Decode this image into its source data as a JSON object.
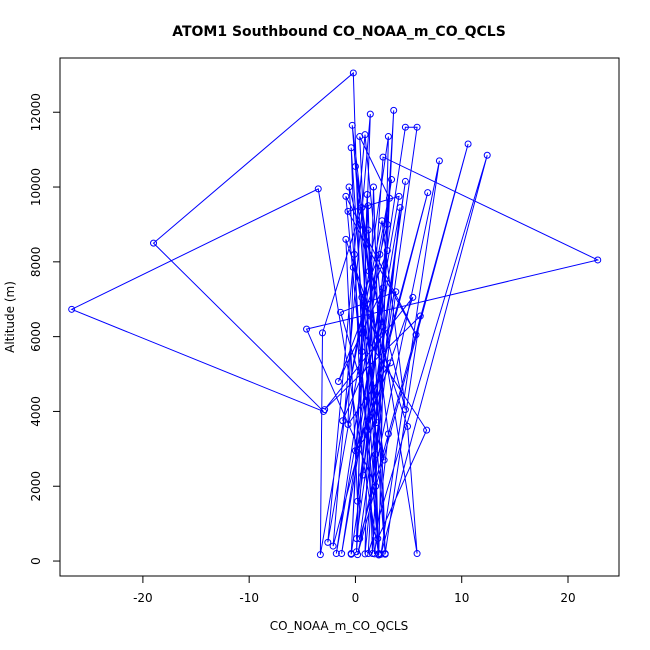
{
  "chart_data": {
    "type": "line",
    "title": "ATOM1 Southbound CO_NOAA_m_CO_QCLS",
    "xlabel": "CO_NOAA_m_CO_QCLS",
    "ylabel": "Altitude (m)",
    "xlim": [
      -27.8,
      24.8
    ],
    "ylim": [
      -400,
      13450
    ],
    "x_ticks": [
      -20,
      -10,
      0,
      10,
      20
    ],
    "y_ticks": [
      0,
      2000,
      4000,
      6000,
      8000,
      10000,
      12000
    ],
    "grid": false,
    "legend": "none",
    "color": "#0000ff",
    "series": [
      {
        "points": [
          [
            -0.4,
            200
          ],
          [
            0.6,
            5600
          ],
          [
            -0.2,
            13050
          ],
          [
            -19,
            8500
          ],
          [
            -3,
            4000
          ],
          [
            -26.7,
            6730
          ],
          [
            -3.5,
            9950
          ],
          [
            2.2,
            160
          ],
          [
            0.4,
            11350
          ],
          [
            3.2,
            9700
          ],
          [
            1.6,
            200
          ],
          [
            0.6,
            9450
          ],
          [
            -3.1,
            6100
          ],
          [
            -3.3,
            170
          ],
          [
            1.3,
            7750
          ],
          [
            -0.3,
            11650
          ],
          [
            2.8,
            180
          ],
          [
            1.1,
            9800
          ],
          [
            0.1,
            250
          ],
          [
            2.6,
            10800
          ],
          [
            22.8,
            8050
          ],
          [
            -4.6,
            6200
          ],
          [
            1.9,
            2000
          ],
          [
            3.6,
            12050
          ],
          [
            1.2,
            200
          ],
          [
            12.4,
            10850
          ],
          [
            2.4,
            180
          ],
          [
            7.9,
            10700
          ],
          [
            0.2,
            170
          ],
          [
            10.6,
            11150
          ],
          [
            0.4,
            600
          ],
          [
            5.8,
            11600
          ],
          [
            4.7,
            11600
          ],
          [
            -1.3,
            200
          ],
          [
            4.2,
            9450
          ],
          [
            0.9,
            190
          ],
          [
            1.7,
            10000
          ],
          [
            2.8,
            200
          ],
          [
            6.1,
            6550
          ],
          [
            -2.9,
            4050
          ],
          [
            5.4,
            7050
          ],
          [
            1.0,
            3500
          ],
          [
            6.8,
            9850
          ],
          [
            -2.1,
            400
          ],
          [
            1.4,
            11950
          ],
          [
            0.1,
            600
          ],
          [
            4.7,
            10150
          ],
          [
            -0.4,
            180
          ],
          [
            1.2,
            9500
          ],
          [
            2.1,
            600
          ],
          [
            6.7,
            3500
          ],
          [
            0.5,
            6200
          ],
          [
            3.1,
            11350
          ],
          [
            2.2,
            200
          ],
          [
            -0.9,
            9750
          ],
          [
            5.7,
            6050
          ],
          [
            -0.7,
            9350
          ],
          [
            4.1,
            9750
          ],
          [
            -1.8,
            200
          ],
          [
            3.4,
            10200
          ],
          [
            -2.6,
            500
          ],
          [
            0.9,
            11400
          ],
          [
            2.6,
            6250
          ],
          [
            -1.2,
            3750
          ],
          [
            2.5,
            9100
          ],
          [
            4.7,
            4050
          ],
          [
            -0.6,
            10000
          ],
          [
            1.8,
            190
          ],
          [
            3.1,
            3400
          ],
          [
            0.0,
            10550
          ],
          [
            5.8,
            200
          ],
          [
            4.9,
            3600
          ],
          [
            -0.9,
            8600
          ],
          [
            0.2,
            1600
          ],
          [
            3.0,
            8300
          ],
          [
            -1.6,
            4800
          ],
          [
            2.6,
            7300
          ],
          [
            0.7,
            2300
          ],
          [
            -0.4,
            11050
          ],
          [
            2.2,
            170
          ],
          [
            1.2,
            8850
          ],
          [
            1.9,
            2850
          ],
          [
            3.8,
            7200
          ],
          [
            -1.4,
            6650
          ],
          [
            2.7,
            2700
          ],
          [
            0.6,
            7050
          ],
          [
            2.3,
            8200
          ],
          [
            3.0,
            9000
          ],
          [
            2.0,
            5900
          ],
          [
            -0.2,
            7850
          ],
          [
            -0.7,
            3650
          ],
          [
            3.3,
            5300
          ],
          [
            0.0,
            2950
          ],
          [
            2.0,
            3700
          ],
          [
            -0.1,
            8200
          ]
        ]
      }
    ]
  }
}
